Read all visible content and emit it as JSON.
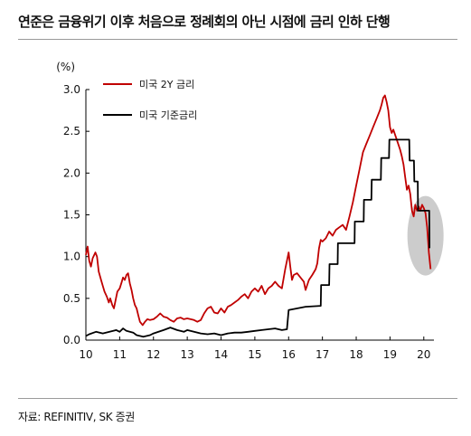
{
  "title": "연준은 금융위기 이후 처음으로 정례회의 아닌 시점에 금리 인하 단행",
  "source": "자료: REFINITIV, SK 증권",
  "chart_data": {
    "type": "line",
    "unit_label": "(%)",
    "ylim": [
      0,
      3.0
    ],
    "yticks": [
      0.0,
      0.5,
      1.0,
      1.5,
      2.0,
      2.5,
      3.0
    ],
    "ytick_labels": [
      "0.0",
      "0.5",
      "1.0",
      "1.5",
      "2.0",
      "2.5",
      "3.0"
    ],
    "xlim": [
      2010,
      2020.3
    ],
    "xticks": [
      2010,
      2011,
      2012,
      2013,
      2014,
      2015,
      2016,
      2017,
      2018,
      2019,
      2020
    ],
    "xtick_labels": [
      "10",
      "11",
      "12",
      "13",
      "14",
      "15",
      "16",
      "17",
      "18",
      "19",
      "20"
    ],
    "legend_position": "top-left",
    "highlight": {
      "shape": "ellipse",
      "x_center": 2020.05,
      "y_center": 1.25,
      "color": "#cccccc"
    },
    "series": [
      {
        "name": "미국 2Y 금리",
        "color": "#c00000",
        "points": [
          [
            2010.0,
            1.02
          ],
          [
            2010.05,
            1.12
          ],
          [
            2010.1,
            0.95
          ],
          [
            2010.15,
            0.88
          ],
          [
            2010.2,
            0.98
          ],
          [
            2010.28,
            1.05
          ],
          [
            2010.33,
            1.0
          ],
          [
            2010.38,
            0.82
          ],
          [
            2010.45,
            0.72
          ],
          [
            2010.5,
            0.65
          ],
          [
            2010.55,
            0.58
          ],
          [
            2010.62,
            0.52
          ],
          [
            2010.68,
            0.45
          ],
          [
            2010.72,
            0.5
          ],
          [
            2010.78,
            0.42
          ],
          [
            2010.83,
            0.38
          ],
          [
            2010.88,
            0.48
          ],
          [
            2010.93,
            0.58
          ],
          [
            2011.0,
            0.62
          ],
          [
            2011.05,
            0.68
          ],
          [
            2011.1,
            0.75
          ],
          [
            2011.15,
            0.72
          ],
          [
            2011.2,
            0.78
          ],
          [
            2011.25,
            0.8
          ],
          [
            2011.3,
            0.68
          ],
          [
            2011.35,
            0.6
          ],
          [
            2011.4,
            0.5
          ],
          [
            2011.45,
            0.42
          ],
          [
            2011.5,
            0.38
          ],
          [
            2011.55,
            0.3
          ],
          [
            2011.6,
            0.22
          ],
          [
            2011.68,
            0.18
          ],
          [
            2011.75,
            0.22
          ],
          [
            2011.82,
            0.25
          ],
          [
            2011.9,
            0.24
          ],
          [
            2012.0,
            0.25
          ],
          [
            2012.1,
            0.28
          ],
          [
            2012.2,
            0.32
          ],
          [
            2012.3,
            0.28
          ],
          [
            2012.4,
            0.27
          ],
          [
            2012.5,
            0.24
          ],
          [
            2012.6,
            0.22
          ],
          [
            2012.7,
            0.26
          ],
          [
            2012.8,
            0.27
          ],
          [
            2012.9,
            0.25
          ],
          [
            2013.0,
            0.26
          ],
          [
            2013.1,
            0.25
          ],
          [
            2013.2,
            0.24
          ],
          [
            2013.3,
            0.22
          ],
          [
            2013.4,
            0.24
          ],
          [
            2013.5,
            0.32
          ],
          [
            2013.6,
            0.38
          ],
          [
            2013.7,
            0.4
          ],
          [
            2013.8,
            0.33
          ],
          [
            2013.9,
            0.32
          ],
          [
            2014.0,
            0.38
          ],
          [
            2014.1,
            0.33
          ],
          [
            2014.2,
            0.4
          ],
          [
            2014.3,
            0.42
          ],
          [
            2014.4,
            0.45
          ],
          [
            2014.5,
            0.48
          ],
          [
            2014.6,
            0.52
          ],
          [
            2014.7,
            0.55
          ],
          [
            2014.8,
            0.5
          ],
          [
            2014.9,
            0.58
          ],
          [
            2015.0,
            0.62
          ],
          [
            2015.1,
            0.58
          ],
          [
            2015.2,
            0.65
          ],
          [
            2015.3,
            0.55
          ],
          [
            2015.4,
            0.62
          ],
          [
            2015.5,
            0.65
          ],
          [
            2015.6,
            0.7
          ],
          [
            2015.7,
            0.65
          ],
          [
            2015.8,
            0.62
          ],
          [
            2015.9,
            0.85
          ],
          [
            2016.0,
            1.05
          ],
          [
            2016.05,
            0.88
          ],
          [
            2016.1,
            0.72
          ],
          [
            2016.15,
            0.78
          ],
          [
            2016.25,
            0.8
          ],
          [
            2016.35,
            0.75
          ],
          [
            2016.45,
            0.7
          ],
          [
            2016.5,
            0.6
          ],
          [
            2016.6,
            0.72
          ],
          [
            2016.7,
            0.78
          ],
          [
            2016.8,
            0.85
          ],
          [
            2016.85,
            0.92
          ],
          [
            2016.9,
            1.1
          ],
          [
            2016.95,
            1.2
          ],
          [
            2017.0,
            1.18
          ],
          [
            2017.1,
            1.22
          ],
          [
            2017.2,
            1.3
          ],
          [
            2017.3,
            1.25
          ],
          [
            2017.4,
            1.32
          ],
          [
            2017.5,
            1.35
          ],
          [
            2017.6,
            1.38
          ],
          [
            2017.7,
            1.32
          ],
          [
            2017.8,
            1.48
          ],
          [
            2017.9,
            1.65
          ],
          [
            2018.0,
            1.85
          ],
          [
            2018.1,
            2.05
          ],
          [
            2018.2,
            2.25
          ],
          [
            2018.3,
            2.35
          ],
          [
            2018.4,
            2.45
          ],
          [
            2018.5,
            2.55
          ],
          [
            2018.6,
            2.65
          ],
          [
            2018.7,
            2.75
          ],
          [
            2018.75,
            2.82
          ],
          [
            2018.8,
            2.9
          ],
          [
            2018.85,
            2.93
          ],
          [
            2018.9,
            2.85
          ],
          [
            2018.95,
            2.75
          ],
          [
            2019.0,
            2.55
          ],
          [
            2019.05,
            2.48
          ],
          [
            2019.1,
            2.52
          ],
          [
            2019.2,
            2.4
          ],
          [
            2019.3,
            2.28
          ],
          [
            2019.35,
            2.2
          ],
          [
            2019.4,
            2.1
          ],
          [
            2019.45,
            1.95
          ],
          [
            2019.5,
            1.8
          ],
          [
            2019.55,
            1.85
          ],
          [
            2019.6,
            1.75
          ],
          [
            2019.65,
            1.55
          ],
          [
            2019.7,
            1.48
          ],
          [
            2019.75,
            1.62
          ],
          [
            2019.8,
            1.55
          ],
          [
            2019.85,
            1.6
          ],
          [
            2019.9,
            1.55
          ],
          [
            2019.95,
            1.62
          ],
          [
            2020.0,
            1.58
          ],
          [
            2020.05,
            1.52
          ],
          [
            2020.1,
            1.35
          ],
          [
            2020.15,
            1.05
          ],
          [
            2020.2,
            0.85
          ]
        ]
      },
      {
        "name": "미국 기준금리",
        "color": "#000000",
        "points": [
          [
            2010.0,
            0.05
          ],
          [
            2010.1,
            0.07
          ],
          [
            2010.3,
            0.1
          ],
          [
            2010.5,
            0.08
          ],
          [
            2010.7,
            0.1
          ],
          [
            2010.9,
            0.12
          ],
          [
            2011.0,
            0.1
          ],
          [
            2011.1,
            0.14
          ],
          [
            2011.2,
            0.11
          ],
          [
            2011.4,
            0.09
          ],
          [
            2011.5,
            0.06
          ],
          [
            2011.7,
            0.04
          ],
          [
            2011.9,
            0.06
          ],
          [
            2012.0,
            0.08
          ],
          [
            2012.3,
            0.12
          ],
          [
            2012.5,
            0.15
          ],
          [
            2012.7,
            0.12
          ],
          [
            2012.9,
            0.1
          ],
          [
            2013.0,
            0.12
          ],
          [
            2013.2,
            0.1
          ],
          [
            2013.4,
            0.08
          ],
          [
            2013.6,
            0.07
          ],
          [
            2013.8,
            0.08
          ],
          [
            2014.0,
            0.06
          ],
          [
            2014.2,
            0.08
          ],
          [
            2014.4,
            0.09
          ],
          [
            2014.6,
            0.09
          ],
          [
            2014.8,
            0.1
          ],
          [
            2015.0,
            0.11
          ],
          [
            2015.2,
            0.12
          ],
          [
            2015.4,
            0.13
          ],
          [
            2015.6,
            0.14
          ],
          [
            2015.8,
            0.12
          ],
          [
            2015.95,
            0.13
          ],
          [
            2016.0,
            0.36
          ],
          [
            2016.5,
            0.4
          ],
          [
            2016.95,
            0.41
          ],
          [
            2016.96,
            0.66
          ],
          [
            2017.2,
            0.66
          ],
          [
            2017.21,
            0.91
          ],
          [
            2017.45,
            0.91
          ],
          [
            2017.46,
            1.16
          ],
          [
            2017.95,
            1.16
          ],
          [
            2017.96,
            1.42
          ],
          [
            2018.22,
            1.42
          ],
          [
            2018.23,
            1.68
          ],
          [
            2018.45,
            1.68
          ],
          [
            2018.46,
            1.92
          ],
          [
            2018.73,
            1.92
          ],
          [
            2018.74,
            2.18
          ],
          [
            2018.97,
            2.18
          ],
          [
            2018.98,
            2.4
          ],
          [
            2019.57,
            2.4
          ],
          [
            2019.58,
            2.15
          ],
          [
            2019.71,
            2.15
          ],
          [
            2019.72,
            1.9
          ],
          [
            2019.82,
            1.9
          ],
          [
            2019.83,
            1.55
          ],
          [
            2020.16,
            1.55
          ],
          [
            2020.17,
            1.1
          ]
        ]
      }
    ]
  }
}
